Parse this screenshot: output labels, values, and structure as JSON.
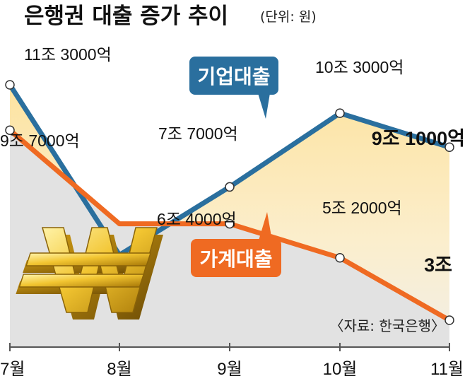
{
  "title": "은행권 대출 증가 추이",
  "unit": "(단위: 원)",
  "source": "〈자료: 한국은행〉",
  "colors": {
    "corporate": "#2a6f9e",
    "household": "#ef6a22",
    "area_top": "#fde7a6",
    "area_bottom": "#f3f0e6",
    "gray_area": "#dcdcdc",
    "axis": "#555555"
  },
  "chart_data": {
    "type": "line",
    "categories": [
      "7월",
      "8월",
      "9월",
      "10월",
      "11월"
    ],
    "ylabel": "",
    "xlabel": "",
    "series": [
      {
        "name": "기업대출",
        "values": [
          11.3,
          5.3,
          7.7,
          10.3,
          9.1
        ],
        "labels": [
          "11조 3000억",
          "",
          "7조 7000억",
          "10조 3000억",
          "9조 1000억"
        ]
      },
      {
        "name": "가계대출",
        "values": [
          9.7,
          6.4,
          6.4,
          5.2,
          3.0
        ],
        "labels": [
          "9조 7000억",
          "6조 4000억",
          "",
          "5조 2000억",
          "3조"
        ]
      }
    ]
  },
  "icon": "won-sign-icon"
}
